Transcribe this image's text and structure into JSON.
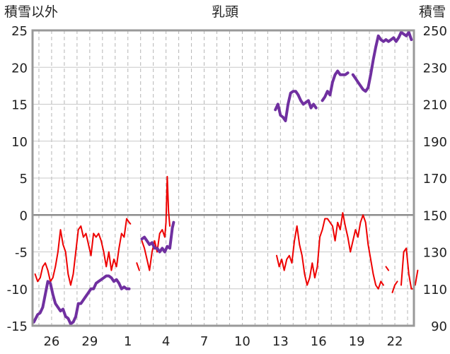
{
  "chart_data": {
    "type": "line",
    "title": "乳頭",
    "left_axis_title": "積雪以外",
    "right_axis_title": "積雪",
    "x_tick_labels": [
      "26",
      "29",
      "1",
      "4",
      "7",
      "10",
      "13",
      "16",
      "19",
      "22"
    ],
    "x_tick_positions": [
      2,
      5,
      8,
      11,
      14,
      17,
      20,
      23,
      26,
      29
    ],
    "x_range": [
      0.5,
      30.5
    ],
    "y_left_ticks": [
      "25",
      "20",
      "15",
      "10",
      "5",
      "0",
      "-5",
      "-10",
      "-15"
    ],
    "y_left_range": [
      -15,
      25
    ],
    "y_right_ticks": [
      "250",
      "230",
      "210",
      "190",
      "170",
      "150",
      "130",
      "110",
      "90"
    ],
    "y_right_range": [
      90,
      250
    ],
    "grid": "dashed vertical lines at x = 1..30",
    "zero_line": true,
    "colors": {
      "temperature": "#ee0000",
      "snow_depth": "#7030a0",
      "frame": "#999999"
    },
    "series": [
      {
        "key": "temperature",
        "axis": "left",
        "segments": [
          [
            [
              0.7,
              -8
            ],
            [
              0.9,
              -9
            ],
            [
              1.1,
              -8.5
            ],
            [
              1.3,
              -7
            ],
            [
              1.5,
              -6.5
            ],
            [
              1.7,
              -7.5
            ],
            [
              1.9,
              -9
            ],
            [
              2.1,
              -8.5
            ],
            [
              2.3,
              -7
            ],
            [
              2.5,
              -5
            ],
            [
              2.7,
              -2
            ],
            [
              2.9,
              -4
            ],
            [
              3.1,
              -5
            ],
            [
              3.3,
              -8
            ],
            [
              3.5,
              -9.5
            ],
            [
              3.7,
              -8
            ],
            [
              3.9,
              -5
            ],
            [
              4.1,
              -2
            ],
            [
              4.3,
              -1.5
            ],
            [
              4.5,
              -3
            ],
            [
              4.7,
              -2.5
            ],
            [
              4.9,
              -4
            ],
            [
              5.1,
              -5.5
            ],
            [
              5.3,
              -2.5
            ],
            [
              5.5,
              -3
            ],
            [
              5.7,
              -2.5
            ],
            [
              5.9,
              -3.5
            ],
            [
              6.1,
              -5
            ],
            [
              6.3,
              -7
            ],
            [
              6.5,
              -5
            ],
            [
              6.7,
              -7.5
            ],
            [
              6.9,
              -6
            ],
            [
              7.1,
              -7
            ],
            [
              7.3,
              -4.5
            ],
            [
              7.5,
              -2.5
            ],
            [
              7.7,
              -3
            ],
            [
              7.9,
              -0.5
            ],
            [
              8.1,
              -1
            ],
            [
              8.2,
              -1.2
            ]
          ],
          [
            [
              8.7,
              -6.5
            ],
            [
              8.9,
              -7.5
            ]
          ],
          [
            [
              9.1,
              -3.5
            ],
            [
              9.3,
              -4.5
            ],
            [
              9.5,
              -6
            ],
            [
              9.7,
              -7.5
            ],
            [
              9.9,
              -5
            ],
            [
              10.1,
              -3.5
            ],
            [
              10.3,
              -5
            ],
            [
              10.5,
              -2.5
            ],
            [
              10.7,
              -2
            ],
            [
              10.9,
              -3
            ],
            [
              11.0,
              -1
            ],
            [
              11.1,
              5.2
            ],
            [
              11.2,
              0.5
            ],
            [
              11.3,
              -1.5
            ]
          ],
          [
            [
              19.7,
              -5.5
            ],
            [
              19.9,
              -7
            ],
            [
              20.1,
              -6
            ],
            [
              20.3,
              -7.5
            ],
            [
              20.5,
              -6
            ],
            [
              20.7,
              -5.5
            ],
            [
              20.9,
              -6.5
            ],
            [
              21.1,
              -3.5
            ],
            [
              21.3,
              -1.5
            ],
            [
              21.5,
              -4
            ],
            [
              21.7,
              -5.5
            ],
            [
              21.9,
              -8
            ],
            [
              22.1,
              -9.5
            ],
            [
              22.3,
              -8.5
            ],
            [
              22.5,
              -6.5
            ],
            [
              22.7,
              -8.5
            ],
            [
              22.9,
              -7
            ],
            [
              23.1,
              -3
            ],
            [
              23.3,
              -2
            ],
            [
              23.5,
              -0.5
            ],
            [
              23.7,
              -0.5
            ],
            [
              23.9,
              -1
            ],
            [
              24.1,
              -1.5
            ],
            [
              24.3,
              -3.5
            ],
            [
              24.5,
              -1
            ],
            [
              24.7,
              -2
            ],
            [
              24.9,
              0.3
            ],
            [
              25.1,
              -1.5
            ],
            [
              25.3,
              -3
            ],
            [
              25.5,
              -5
            ],
            [
              25.7,
              -3.5
            ],
            [
              25.9,
              -2
            ],
            [
              26.1,
              -3
            ],
            [
              26.3,
              -1
            ],
            [
              26.5,
              0
            ],
            [
              26.7,
              -1
            ],
            [
              26.9,
              -4
            ],
            [
              27.1,
              -6
            ],
            [
              27.3,
              -8
            ],
            [
              27.5,
              -9.5
            ],
            [
              27.7,
              -10
            ],
            [
              27.9,
              -9
            ],
            [
              28.1,
              -9.5
            ]
          ],
          [
            [
              28.3,
              -7
            ],
            [
              28.5,
              -7.5
            ]
          ],
          [
            [
              28.8,
              -10.5
            ],
            [
              29.0,
              -9.5
            ],
            [
              29.2,
              -9
            ]
          ],
          [
            [
              29.5,
              -9.5
            ],
            [
              29.7,
              -5
            ],
            [
              29.9,
              -4.5
            ],
            [
              30.1,
              -8
            ],
            [
              30.3,
              -10
            ],
            [
              30.5,
              -10
            ]
          ],
          [
            [
              30.6,
              -9.5
            ],
            [
              30.8,
              -7.5
            ]
          ]
        ]
      },
      {
        "key": "snow_depth",
        "axis": "right",
        "segments": [
          [
            [
              0.6,
              92
            ],
            [
              0.9,
              96
            ],
            [
              1.1,
              97
            ],
            [
              1.3,
              100
            ],
            [
              1.5,
              107
            ],
            [
              1.7,
              114
            ],
            [
              1.9,
              113
            ],
            [
              2.1,
              107
            ],
            [
              2.3,
              102
            ],
            [
              2.5,
              100
            ],
            [
              2.7,
              98
            ],
            [
              2.9,
              99
            ],
            [
              3.1,
              95
            ],
            [
              3.3,
              94
            ],
            [
              3.5,
              91
            ],
            [
              3.7,
              92
            ],
            [
              3.9,
              95
            ],
            [
              4.1,
              102
            ],
            [
              4.3,
              102
            ],
            [
              4.5,
              104
            ],
            [
              4.7,
              106
            ],
            [
              4.9,
              108
            ],
            [
              5.1,
              110
            ],
            [
              5.3,
              110
            ],
            [
              5.5,
              113
            ],
            [
              5.7,
              114
            ],
            [
              5.9,
              115
            ],
            [
              6.1,
              116
            ],
            [
              6.3,
              117
            ],
            [
              6.5,
              117
            ],
            [
              6.7,
              116
            ],
            [
              6.9,
              114
            ],
            [
              7.1,
              115
            ],
            [
              7.3,
              113
            ],
            [
              7.5,
              110
            ],
            [
              7.7,
              111
            ],
            [
              7.9,
              110
            ],
            [
              8.1,
              110
            ]
          ],
          [
            [
              9.1,
              137
            ],
            [
              9.3,
              138
            ],
            [
              9.5,
              136
            ],
            [
              9.7,
              134
            ],
            [
              9.9,
              135
            ],
            [
              10.1,
              132
            ],
            [
              10.3,
              132
            ],
            [
              10.5,
              130
            ],
            [
              10.7,
              132
            ],
            [
              10.9,
              130
            ],
            [
              11.1,
              133
            ],
            [
              11.3,
              132
            ],
            [
              11.5,
              143
            ],
            [
              11.6,
              146
            ]
          ],
          [
            [
              19.6,
              207
            ],
            [
              19.8,
              210
            ],
            [
              20.0,
              204
            ],
            [
              20.2,
              203
            ],
            [
              20.4,
              201
            ],
            [
              20.6,
              210
            ],
            [
              20.8,
              216
            ],
            [
              21.0,
              217
            ],
            [
              21.2,
              217
            ],
            [
              21.4,
              215
            ],
            [
              21.6,
              212
            ],
            [
              21.8,
              210
            ],
            [
              22.0,
              211
            ],
            [
              22.2,
              212
            ],
            [
              22.4,
              208
            ],
            [
              22.6,
              210
            ],
            [
              22.8,
              208
            ]
          ],
          [
            [
              23.3,
              212
            ],
            [
              23.5,
              214
            ],
            [
              23.7,
              217
            ],
            [
              23.9,
              215
            ],
            [
              24.1,
              222
            ],
            [
              24.3,
              226
            ],
            [
              24.5,
              228
            ],
            [
              24.7,
              226
            ],
            [
              24.9,
              226
            ],
            [
              25.1,
              226
            ],
            [
              25.3,
              227
            ]
          ],
          [
            [
              25.7,
              226
            ],
            [
              25.9,
              224
            ],
            [
              26.1,
              222
            ],
            [
              26.3,
              220
            ],
            [
              26.5,
              218
            ],
            [
              26.7,
              217
            ],
            [
              26.9,
              219
            ],
            [
              27.1,
              226
            ],
            [
              27.3,
              234
            ],
            [
              27.5,
              241
            ],
            [
              27.7,
              247
            ],
            [
              27.9,
              245
            ],
            [
              28.1,
              244
            ],
            [
              28.3,
              245
            ],
            [
              28.5,
              244
            ],
            [
              28.7,
              245
            ],
            [
              28.9,
              246
            ],
            [
              29.1,
              244
            ],
            [
              29.3,
              246
            ],
            [
              29.5,
              249
            ],
            [
              29.7,
              248
            ],
            [
              29.9,
              247
            ],
            [
              30.1,
              249
            ],
            [
              30.3,
              245
            ]
          ]
        ]
      }
    ]
  }
}
